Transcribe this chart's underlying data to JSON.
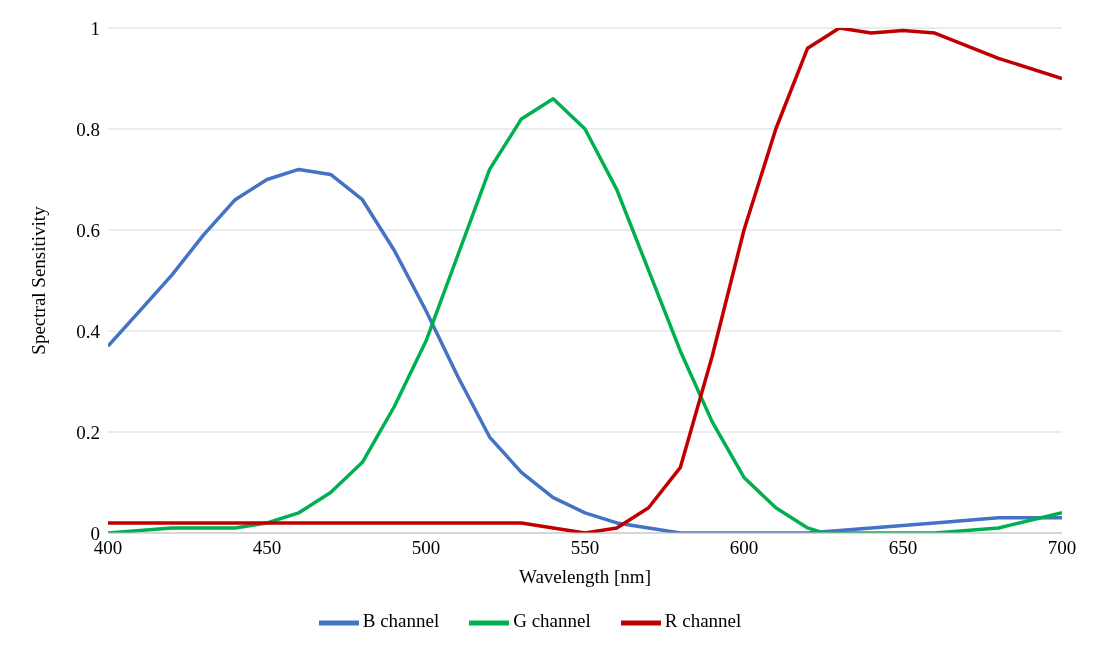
{
  "chart_data": {
    "type": "line",
    "xlabel": "Wavelength [nm]",
    "ylabel": "Spectral Sensitivity",
    "xlim": [
      400,
      700
    ],
    "xticks": [
      400,
      450,
      500,
      550,
      600,
      650,
      700
    ],
    "ylim": [
      0,
      1
    ],
    "yticks": [
      0,
      0.2,
      0.4,
      0.6,
      0.8,
      1
    ],
    "grid": "y",
    "legend": "bottom",
    "marker": "none",
    "line_style": "solid",
    "series": [
      {
        "name": "B channel",
        "color": "#4472c4",
        "x": [
          400,
          410,
          420,
          430,
          440,
          450,
          460,
          470,
          480,
          490,
          500,
          510,
          520,
          530,
          540,
          550,
          560,
          570,
          580,
          600,
          620,
          640,
          660,
          680,
          700
        ],
        "values": [
          0.37,
          0.44,
          0.51,
          0.59,
          0.66,
          0.7,
          0.72,
          0.71,
          0.66,
          0.56,
          0.44,
          0.31,
          0.19,
          0.12,
          0.07,
          0.04,
          0.02,
          0.01,
          0,
          0,
          0,
          0.01,
          0.02,
          0.03,
          0.03
        ]
      },
      {
        "name": "G channel",
        "color": "#00b050",
        "x": [
          400,
          420,
          440,
          450,
          460,
          470,
          480,
          490,
          500,
          510,
          520,
          530,
          540,
          550,
          560,
          570,
          580,
          590,
          600,
          610,
          620,
          625,
          660,
          680,
          700
        ],
        "values": [
          0,
          0.01,
          0.01,
          0.02,
          0.04,
          0.08,
          0.14,
          0.25,
          0.38,
          0.55,
          0.72,
          0.82,
          0.86,
          0.8,
          0.68,
          0.52,
          0.36,
          0.22,
          0.11,
          0.05,
          0.01,
          0,
          0,
          0.01,
          0.04
        ]
      },
      {
        "name": "R channel",
        "color": "#c00000",
        "x": [
          400,
          500,
          515,
          530,
          540,
          550,
          560,
          570,
          580,
          590,
          600,
          610,
          620,
          630,
          640,
          650,
          660,
          680,
          700
        ],
        "values": [
          0.02,
          0.02,
          0.02,
          0.02,
          0.01,
          0,
          0.01,
          0.05,
          0.13,
          0.35,
          0.6,
          0.8,
          0.96,
          1,
          0.99,
          0.995,
          0.99,
          0.94,
          0.9
        ]
      }
    ]
  }
}
